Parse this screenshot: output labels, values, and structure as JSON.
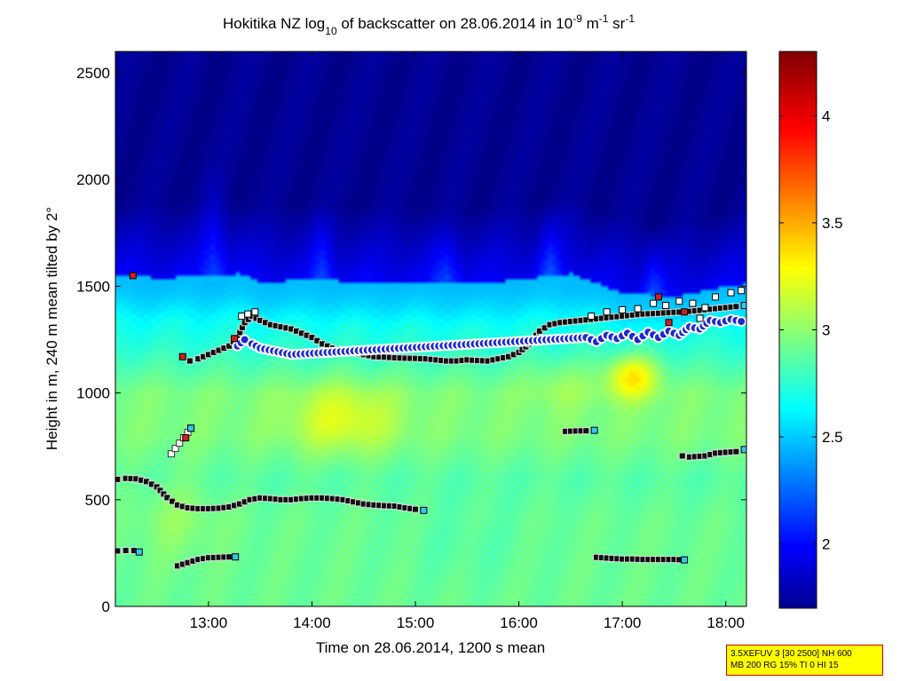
{
  "chart_data": {
    "type": "heatmap",
    "title": {
      "prefix": "Hokitika NZ log",
      "base": "10",
      "middle": " of backscatter on 28.06.2014 in 10",
      "exp1": "-9",
      "unit1": " m",
      "exp2": "-1",
      "unit2": " sr",
      "exp3": "-1"
    },
    "xlabel": "Time on 28.06.2014, 1200 s mean",
    "ylabel": "Height in m, 240 m mean tilted by 2°",
    "xlim": [
      12.1,
      18.2
    ],
    "ylim": [
      0,
      2600
    ],
    "xticks": [
      {
        "value": 13,
        "label": "13:00"
      },
      {
        "value": 14,
        "label": "14:00"
      },
      {
        "value": 15,
        "label": "15:00"
      },
      {
        "value": 16,
        "label": "16:00"
      },
      {
        "value": 17,
        "label": "17:00"
      },
      {
        "value": 18,
        "label": "18:00"
      }
    ],
    "yticks": [
      0,
      500,
      1000,
      1500,
      2000,
      2500
    ],
    "colorbar": {
      "min": 1.7,
      "max": 4.3,
      "ticks": [
        {
          "value": 2,
          "label": "2"
        },
        {
          "value": 2.5,
          "label": "2.5"
        },
        {
          "value": 3,
          "label": "3"
        },
        {
          "value": 3.5,
          "label": "3.5"
        },
        {
          "value": 4,
          "label": "4"
        }
      ]
    },
    "field": {
      "top_of_layer": [
        [
          12.1,
          1550
        ],
        [
          12.5,
          1540
        ],
        [
          13.0,
          1545
        ],
        [
          13.3,
          1560
        ],
        [
          13.5,
          1520
        ],
        [
          14.0,
          1530
        ],
        [
          14.5,
          1520
        ],
        [
          15.0,
          1525
        ],
        [
          15.5,
          1510
        ],
        [
          16.0,
          1530
        ],
        [
          16.5,
          1560
        ],
        [
          17.0,
          1470
        ],
        [
          17.5,
          1450
        ],
        [
          18.0,
          1500
        ],
        [
          18.2,
          1510
        ]
      ],
      "background_low": 1.75,
      "layer_profile": [
        [
          0,
          2.95
        ],
        [
          400,
          2.95
        ],
        [
          600,
          2.9
        ],
        [
          800,
          3.0
        ],
        [
          1000,
          3.0
        ],
        [
          1200,
          2.8
        ],
        [
          1400,
          2.65
        ],
        [
          1500,
          2.55
        ]
      ],
      "warm_patches": [
        {
          "x": 14.3,
          "y": 880,
          "sx": 0.5,
          "sy": 160,
          "amp": 0.25
        },
        {
          "x": 16.4,
          "y": 1050,
          "sx": 0.35,
          "sy": 120,
          "amp": 0.1
        },
        {
          "x": 17.1,
          "y": 1080,
          "sx": 0.25,
          "sy": 100,
          "amp": 0.45
        },
        {
          "x": 12.7,
          "y": 430,
          "sx": 0.4,
          "sy": 200,
          "amp": 0.1
        },
        {
          "x": 15.5,
          "y": 300,
          "sx": 0.6,
          "sy": 200,
          "amp": -0.05
        }
      ],
      "blue_plumes": [
        {
          "x": 13.05,
          "w": 0.18,
          "top": 2100
        },
        {
          "x": 14.1,
          "w": 0.15,
          "top": 1900
        },
        {
          "x": 15.3,
          "w": 0.2,
          "top": 1800
        },
        {
          "x": 16.3,
          "w": 0.15,
          "top": 1900
        },
        {
          "x": 17.3,
          "w": 0.15,
          "top": 1750
        }
      ]
    },
    "series": [
      {
        "kind": "aerosol-layer-top",
        "points": [
          [
            12.82,
            1150
          ],
          [
            12.9,
            1160
          ],
          [
            13.0,
            1180
          ],
          [
            13.1,
            1200
          ],
          [
            13.2,
            1220
          ],
          [
            13.28,
            1260
          ],
          [
            13.35,
            1330
          ],
          [
            13.42,
            1360
          ],
          [
            13.5,
            1340
          ],
          [
            13.6,
            1320
          ],
          [
            13.7,
            1310
          ],
          [
            13.8,
            1300
          ],
          [
            13.9,
            1280
          ],
          [
            14.0,
            1260
          ],
          [
            14.1,
            1230
          ],
          [
            14.2,
            1210
          ],
          [
            14.3,
            1200
          ],
          [
            14.4,
            1190
          ],
          [
            14.5,
            1180
          ],
          [
            14.6,
            1170
          ],
          [
            14.7,
            1168
          ],
          [
            14.8,
            1165
          ],
          [
            14.9,
            1163
          ],
          [
            15.0,
            1162
          ],
          [
            15.1,
            1160
          ],
          [
            15.2,
            1155
          ],
          [
            15.3,
            1150
          ],
          [
            15.4,
            1150
          ],
          [
            15.5,
            1155
          ],
          [
            15.6,
            1152
          ],
          [
            15.7,
            1150
          ],
          [
            15.8,
            1160
          ],
          [
            15.9,
            1170
          ],
          [
            16.0,
            1190
          ],
          [
            16.1,
            1230
          ],
          [
            16.2,
            1290
          ],
          [
            16.3,
            1320
          ],
          [
            16.4,
            1330
          ],
          [
            16.5,
            1335
          ],
          [
            16.6,
            1340
          ],
          [
            16.7,
            1345
          ],
          [
            16.8,
            1350
          ],
          [
            16.9,
            1355
          ],
          [
            17.0,
            1360
          ],
          [
            17.1,
            1365
          ],
          [
            17.2,
            1370
          ],
          [
            17.3,
            1372
          ],
          [
            17.4,
            1375
          ],
          [
            17.5,
            1378
          ],
          [
            17.6,
            1380
          ],
          [
            17.7,
            1385
          ],
          [
            17.8,
            1390
          ],
          [
            17.9,
            1395
          ],
          [
            18.0,
            1400
          ],
          [
            18.1,
            1405
          ],
          [
            18.18,
            1410
          ]
        ]
      },
      {
        "kind": "lower-layer",
        "points": [
          [
            12.12,
            595
          ],
          [
            12.2,
            600
          ],
          [
            12.3,
            598
          ],
          [
            12.4,
            585
          ],
          [
            12.5,
            560
          ],
          [
            12.6,
            510
          ],
          [
            12.7,
            475
          ],
          [
            12.8,
            462
          ],
          [
            12.9,
            458
          ],
          [
            13.0,
            458
          ],
          [
            13.1,
            460
          ],
          [
            13.2,
            466
          ],
          [
            13.3,
            480
          ],
          [
            13.4,
            500
          ],
          [
            13.5,
            508
          ],
          [
            13.6,
            505
          ],
          [
            13.7,
            500
          ],
          [
            13.8,
            500
          ],
          [
            13.9,
            505
          ],
          [
            14.0,
            508
          ],
          [
            14.1,
            508
          ],
          [
            14.2,
            505
          ],
          [
            14.3,
            500
          ],
          [
            14.4,
            490
          ],
          [
            14.5,
            480
          ],
          [
            14.6,
            475
          ],
          [
            14.7,
            472
          ],
          [
            14.8,
            470
          ],
          [
            14.9,
            462
          ],
          [
            15.0,
            455
          ],
          [
            15.08,
            450
          ]
        ]
      },
      {
        "kind": "mixing-layer-right",
        "points": [
          [
            17.58,
            705
          ],
          [
            17.65,
            700
          ],
          [
            17.8,
            705
          ],
          [
            17.9,
            718
          ],
          [
            18.0,
            722
          ],
          [
            18.1,
            725
          ],
          [
            18.18,
            735
          ]
        ]
      },
      {
        "kind": "mid-layer",
        "points": [
          [
            16.45,
            820
          ],
          [
            16.55,
            822
          ],
          [
            16.65,
            823
          ],
          [
            16.73,
            825
          ]
        ]
      },
      {
        "kind": "surface-layer-left",
        "points": [
          [
            12.12,
            260
          ],
          [
            12.2,
            262
          ],
          [
            12.28,
            262
          ],
          [
            12.33,
            255
          ]
        ]
      },
      {
        "kind": "surface-layer-1",
        "points": [
          [
            12.7,
            190
          ],
          [
            12.8,
            205
          ],
          [
            12.9,
            220
          ],
          [
            13.0,
            228
          ],
          [
            13.1,
            230
          ],
          [
            13.2,
            232
          ],
          [
            13.26,
            232
          ]
        ]
      },
      {
        "kind": "surface-layer-2",
        "points": [
          [
            16.75,
            230
          ],
          [
            16.9,
            225
          ],
          [
            17.0,
            222
          ],
          [
            17.1,
            222
          ],
          [
            17.2,
            220
          ],
          [
            17.3,
            220
          ],
          [
            17.4,
            220
          ],
          [
            17.5,
            220
          ],
          [
            17.6,
            218
          ]
        ]
      },
      {
        "kind": "rising-layer",
        "points": [
          [
            12.64,
            715
          ],
          [
            12.68,
            740
          ],
          [
            12.72,
            765
          ],
          [
            12.76,
            790
          ],
          [
            12.8,
            815
          ],
          [
            12.83,
            835
          ]
        ]
      },
      {
        "kind": "cloud-base",
        "points": [
          [
            13.28,
            1220
          ],
          [
            13.35,
            1250
          ],
          [
            13.42,
            1230
          ],
          [
            13.5,
            1210
          ],
          [
            13.8,
            1180
          ],
          [
            16.65,
            1260
          ],
          [
            16.75,
            1240
          ],
          [
            16.85,
            1270
          ],
          [
            16.95,
            1255
          ],
          [
            17.05,
            1280
          ],
          [
            17.15,
            1250
          ],
          [
            17.25,
            1285
          ],
          [
            17.35,
            1260
          ],
          [
            17.45,
            1290
          ],
          [
            17.55,
            1270
          ],
          [
            17.65,
            1310
          ],
          [
            17.75,
            1300
          ],
          [
            17.85,
            1340
          ],
          [
            17.95,
            1330
          ],
          [
            18.05,
            1345
          ],
          [
            18.15,
            1335
          ]
        ]
      },
      {
        "kind": "scatter-white",
        "points": [
          [
            13.32,
            1360
          ],
          [
            13.38,
            1370
          ],
          [
            13.45,
            1380
          ],
          [
            16.7,
            1360
          ],
          [
            16.85,
            1380
          ],
          [
            17.0,
            1390
          ],
          [
            17.15,
            1395
          ],
          [
            17.3,
            1420
          ],
          [
            17.42,
            1410
          ],
          [
            17.55,
            1430
          ],
          [
            17.68,
            1420
          ],
          [
            17.8,
            1400
          ],
          [
            17.9,
            1450
          ],
          [
            18.05,
            1470
          ],
          [
            18.15,
            1480
          ],
          [
            17.75,
            1350
          ]
        ]
      },
      {
        "kind": "scatter-red",
        "points": [
          [
            12.27,
            1550
          ],
          [
            12.75,
            1170
          ],
          [
            13.25,
            1255
          ],
          [
            17.35,
            1450
          ],
          [
            17.6,
            1380
          ],
          [
            17.45,
            1330
          ],
          [
            12.78,
            790
          ]
        ]
      }
    ]
  },
  "info_box": {
    "line1": "3.5XEFUV 3 [30 2500] NH 600",
    "line2": "MB 200 RG 15% TI 0 HI 15"
  }
}
